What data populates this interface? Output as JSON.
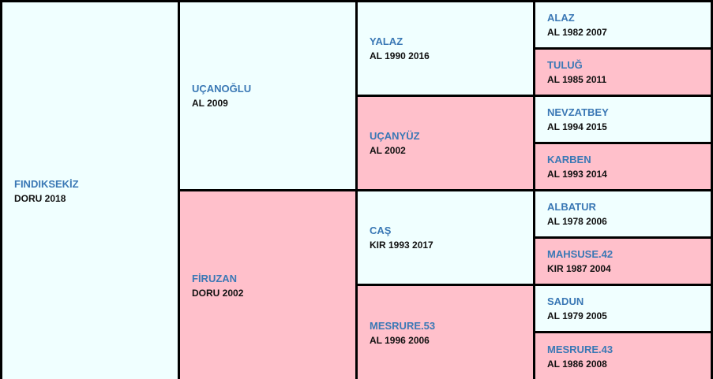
{
  "colors": {
    "male": "#f0ffff",
    "female": "#ffc0cb",
    "name": "#3a78b5",
    "border": "#000000"
  },
  "horse": {
    "name": "FINDIKSEKİZ",
    "info": "DORU 2018"
  },
  "sire": {
    "name": "UÇANOĞLU",
    "info": "AL 2009"
  },
  "dam": {
    "name": "FİRUZAN",
    "info": "DORU 2002"
  },
  "grandparents": [
    {
      "name": "YALAZ",
      "info": "AL 1990 2016"
    },
    {
      "name": "UÇANYÜZ",
      "info": "AL 2002"
    },
    {
      "name": "CAŞ",
      "info": "KIR 1993 2017"
    },
    {
      "name": "MESRURE.53",
      "info": "AL 1996 2006"
    }
  ],
  "great_grandparents": [
    {
      "name": "ALAZ",
      "info": "AL 1982 2007"
    },
    {
      "name": "TULUĞ",
      "info": "AL 1985 2011"
    },
    {
      "name": "NEVZATBEY",
      "info": "AL 1994 2015"
    },
    {
      "name": "KARBEN",
      "info": "AL 1993 2014"
    },
    {
      "name": "ALBATUR",
      "info": "AL 1978 2006"
    },
    {
      "name": "MAHSUSE.42",
      "info": "KIR 1987 2004"
    },
    {
      "name": "SADUN",
      "info": "AL 1979 2005"
    },
    {
      "name": "MESRURE.43",
      "info": "AL 1986 2008"
    }
  ]
}
